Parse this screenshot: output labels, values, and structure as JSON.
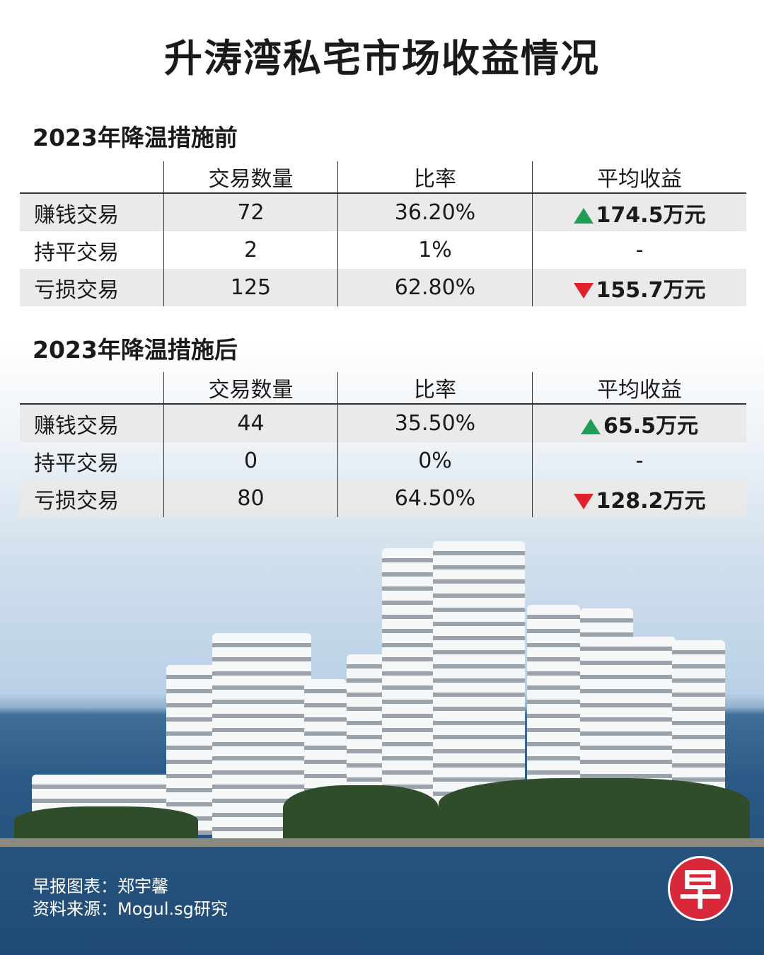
{
  "title": "升涛湾私宅市场收益情况",
  "sections": [
    {
      "heading": "2023年降温措施前",
      "table": {
        "header": [
          "交易数量",
          "比率",
          "平均收益"
        ],
        "rows": [
          [
            "赚钱交易",
            "72",
            "36.20%",
            "174.5万元"
          ],
          [
            "持平交易",
            "2",
            "1%",
            "-"
          ],
          [
            "亏损交易",
            "125",
            "62.80%",
            "155.7万元"
          ]
        ]
      }
    },
    {
      "heading": "2023年降温措施后",
      "table": {
        "header": [
          "交易数量",
          "比率",
          "平均收益"
        ],
        "rows": [
          [
            "赚钱交易",
            "44",
            "35.50%",
            "65.5万元"
          ],
          [
            "持平交易",
            "0",
            "0%",
            "-"
          ],
          [
            "亏损交易",
            "80",
            "64.50%",
            "128.2万元"
          ]
        ]
      }
    }
  ],
  "footer": {
    "credit": "早报图表：郑宇馨",
    "source": "资料来源：Mogul.sg研究"
  },
  "logo": "早"
}
